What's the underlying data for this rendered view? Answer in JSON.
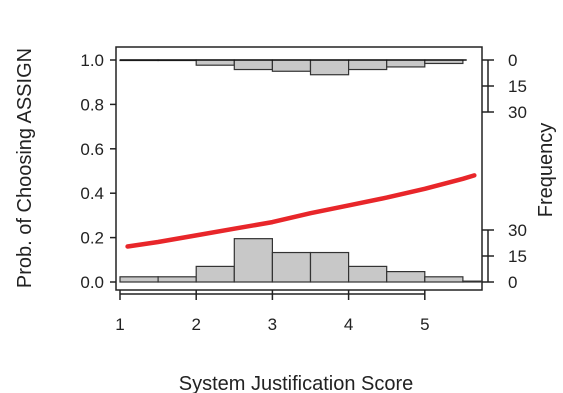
{
  "chart_data": {
    "type": "line",
    "xlabel": "System Justification Score",
    "ylabel": "Prob. of Choosing ASSIGN",
    "ylabel_right": "Frequency",
    "xlim": [
      1,
      5.7
    ],
    "ylim": [
      0,
      1
    ],
    "x_ticks": [
      "1",
      "2",
      "3",
      "4",
      "5"
    ],
    "y_ticks": [
      "0.0",
      "0.2",
      "0.4",
      "0.6",
      "0.8",
      "1.0"
    ],
    "freq_ticks_top": [
      "0",
      "15",
      "30"
    ],
    "freq_ticks_bottom": [
      "0",
      "15",
      "30"
    ],
    "colors": {
      "curve": "#e8262a",
      "bars": "#c8c8c8",
      "bar_edge": "#333333"
    },
    "series": [
      {
        "x": [
          1.1,
          1.5,
          2.0,
          2.5,
          3.0,
          3.5,
          4.0,
          4.5,
          5.0,
          5.5,
          5.65
        ],
        "y": [
          0.16,
          0.18,
          0.21,
          0.24,
          0.27,
          0.31,
          0.345,
          0.38,
          0.42,
          0.465,
          0.48
        ]
      }
    ],
    "histogram_bottom": {
      "bin_edges": [
        1.0,
        1.5,
        2.0,
        2.5,
        3.0,
        3.5,
        4.0,
        4.5,
        5.0,
        5.5,
        5.75
      ],
      "counts": [
        3,
        3,
        9,
        25,
        17,
        17,
        9,
        6,
        3,
        0.5
      ]
    },
    "histogram_top": {
      "bin_edges": [
        1.0,
        1.5,
        2.0,
        2.5,
        3.0,
        3.5,
        4.0,
        4.5,
        5.0,
        5.5
      ],
      "counts": [
        0.3,
        0.3,
        3,
        5.5,
        6.5,
        8.5,
        5.5,
        4,
        2
      ]
    }
  }
}
